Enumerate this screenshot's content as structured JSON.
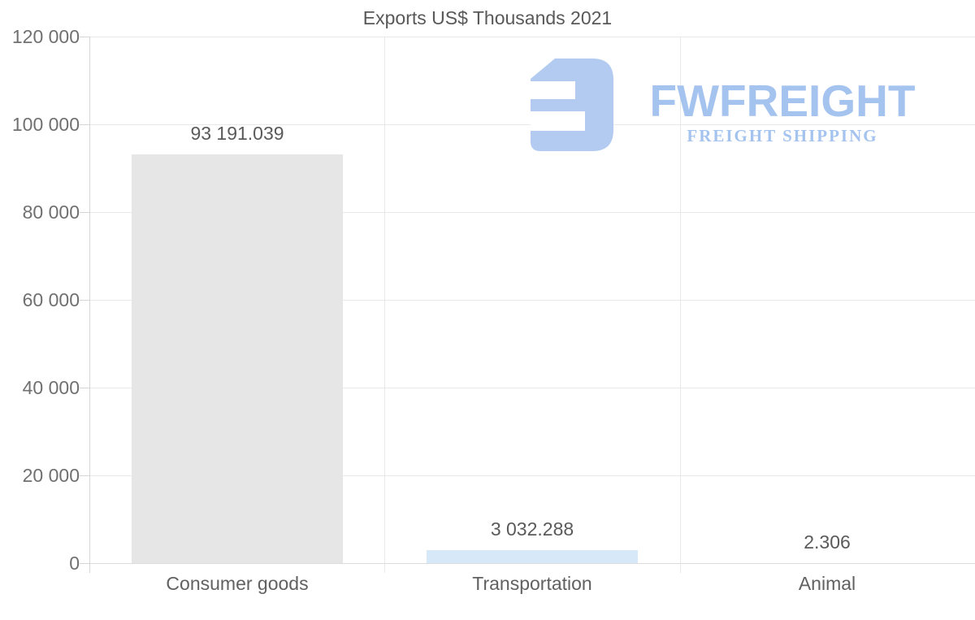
{
  "chart_data": {
    "type": "bar",
    "title": "Exports US$ Thousands 2021",
    "categories": [
      "Consumer goods",
      "Transportation",
      "Animal"
    ],
    "values": [
      93191.039,
      3032.288,
      2.306
    ],
    "value_labels": [
      "93 191.039",
      "3 032.288",
      "2.306"
    ],
    "bar_colors": [
      "#e6e6e6",
      "#d7e8f8",
      "#d7e8f8"
    ],
    "ylim": [
      0,
      120000
    ],
    "ytick_values": [
      120000,
      100000,
      80000,
      60000,
      40000,
      20000,
      0
    ],
    "ytick_labels": [
      "120 000",
      "100 000",
      "80 000",
      "60 000",
      "40 000",
      "20 000",
      "0"
    ],
    "xlabel": "",
    "ylabel": "",
    "grid": true,
    "legend_position": "none"
  },
  "watermark": {
    "brand": "FWFREIGHT",
    "tagline": "FREIGHT SHIPPING",
    "icon": "fwfreight-logo-icon",
    "brand_color": "#a5c3ef",
    "icon_color": "#b3cbf1"
  },
  "colors": {
    "title_text": "#595959",
    "axis_label_text": "#707070",
    "value_label_text": "#5a5a5a",
    "gridline": "#e8e8e8",
    "axis_line": "#d6d6d6",
    "bar_gray": "#e6e6e6",
    "bar_blue": "#d7e8f8"
  }
}
